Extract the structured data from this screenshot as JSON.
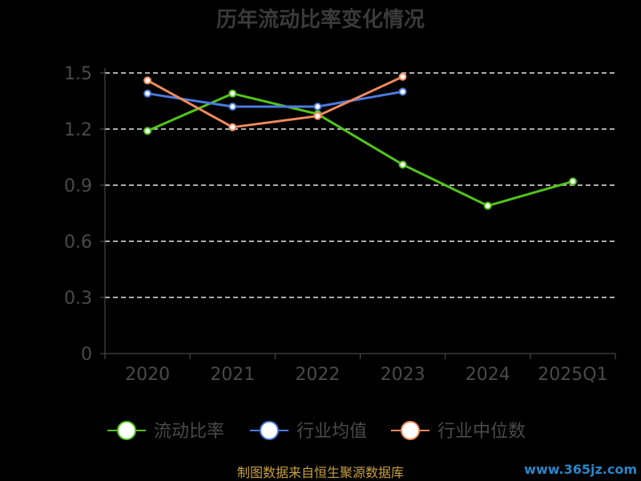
{
  "chart_data": {
    "type": "line",
    "title": "历年流动比率变化情况",
    "categories": [
      "2020",
      "2021",
      "2022",
      "2023",
      "2024",
      "2025Q1"
    ],
    "y_ticks": [
      "0",
      "0.3",
      "0.6",
      "0.9",
      "1.2",
      "1.5"
    ],
    "ylim": [
      0,
      1.5
    ],
    "grid": true,
    "legend_position": "bottom",
    "series": [
      {
        "name": "流动比率",
        "color": "#52c41a",
        "values": [
          1.19,
          1.39,
          1.28,
          1.01,
          0.79,
          0.92
        ]
      },
      {
        "name": "行业均值",
        "color": "#4a7be0",
        "values": [
          1.39,
          1.32,
          1.32,
          1.4,
          null,
          null
        ]
      },
      {
        "name": "行业中位数",
        "color": "#f08a5d",
        "values": [
          1.46,
          1.21,
          1.27,
          1.48,
          null,
          null
        ]
      }
    ]
  },
  "footer": {
    "source": "制图数据来自恒生聚源数据库",
    "watermark": "www.365jz.com"
  }
}
